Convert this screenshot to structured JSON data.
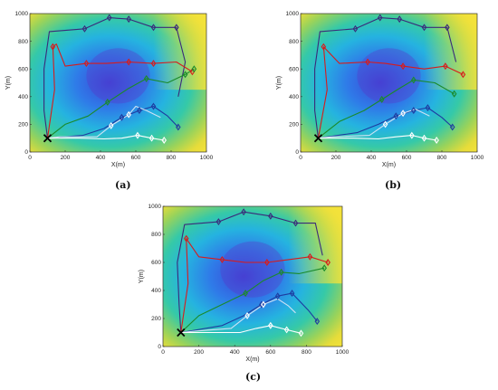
{
  "figure": {
    "captions": [
      "(a)",
      "(b)",
      "(c)"
    ]
  },
  "chart_data": [
    {
      "type": "line",
      "panel": "(a)",
      "xlabel": "X(m)",
      "ylabel": "Y(m)",
      "xlim": [
        0,
        1000
      ],
      "ylim": [
        0,
        1000
      ],
      "xticks": [
        0,
        200,
        400,
        600,
        800,
        1000
      ],
      "yticks": [
        0,
        200,
        400,
        600,
        800,
        1000
      ],
      "background": "terrain-heatmap",
      "depot": [
        100,
        100
      ],
      "series": [
        {
          "color": "#3a2a7a",
          "points": [
            [
              100,
              100
            ],
            [
              80,
              300
            ],
            [
              80,
              600
            ],
            [
              110,
              870
            ],
            [
              310,
              890
            ],
            [
              450,
              970
            ],
            [
              560,
              960
            ],
            [
              700,
              900
            ],
            [
              830,
              900
            ],
            [
              880,
              650
            ],
            [
              840,
              400
            ]
          ]
        },
        {
          "color": "#d81b1b",
          "points": [
            [
              100,
              100
            ],
            [
              140,
              450
            ],
            [
              130,
              760
            ],
            [
              150,
              780
            ],
            [
              200,
              620
            ],
            [
              320,
              640
            ],
            [
              430,
              640
            ],
            [
              560,
              650
            ],
            [
              700,
              640
            ],
            [
              830,
              650
            ],
            [
              920,
              580
            ]
          ]
        },
        {
          "color": "#1a8a2a",
          "points": [
            [
              100,
              100
            ],
            [
              200,
              200
            ],
            [
              330,
              260
            ],
            [
              440,
              360
            ],
            [
              560,
              460
            ],
            [
              660,
              530
            ],
            [
              780,
              500
            ],
            [
              880,
              560
            ],
            [
              930,
              600
            ]
          ]
        },
        {
          "color": "#1e3aa0",
          "points": [
            [
              100,
              100
            ],
            [
              300,
              120
            ],
            [
              420,
              170
            ],
            [
              520,
              250
            ],
            [
              620,
              300
            ],
            [
              700,
              330
            ],
            [
              780,
              260
            ],
            [
              840,
              180
            ]
          ]
        },
        {
          "color": "#cfe3f5",
          "points": [
            [
              100,
              100
            ],
            [
              170,
              110
            ],
            [
              380,
              110
            ],
            [
              460,
              190
            ],
            [
              560,
              270
            ],
            [
              600,
              330
            ],
            [
              660,
              300
            ],
            [
              740,
              250
            ]
          ]
        },
        {
          "color": "#ffffff",
          "points": [
            [
              100,
              100
            ],
            [
              280,
              100
            ],
            [
              420,
              95
            ],
            [
              520,
              100
            ],
            [
              610,
              120
            ],
            [
              690,
              100
            ],
            [
              760,
              85
            ]
          ]
        }
      ],
      "waypoints": [
        {
          "color": "#3a2a7a",
          "points": [
            [
              310,
              890
            ],
            [
              450,
              970
            ],
            [
              560,
              960
            ],
            [
              700,
              900
            ],
            [
              830,
              900
            ]
          ]
        },
        {
          "color": "#d81b1b",
          "points": [
            [
              130,
              760
            ],
            [
              320,
              640
            ],
            [
              560,
              650
            ],
            [
              700,
              640
            ],
            [
              920,
              580
            ]
          ]
        },
        {
          "color": "#1a8a2a",
          "points": [
            [
              440,
              360
            ],
            [
              660,
              530
            ],
            [
              880,
              560
            ],
            [
              930,
              600
            ]
          ]
        },
        {
          "color": "#1e3aa0",
          "points": [
            [
              520,
              250
            ],
            [
              620,
              300
            ],
            [
              700,
              330
            ],
            [
              840,
              180
            ]
          ]
        },
        {
          "color": "#ffffff",
          "points": [
            [
              460,
              190
            ],
            [
              560,
              270
            ],
            [
              610,
              120
            ],
            [
              690,
              100
            ],
            [
              760,
              85
            ]
          ]
        }
      ]
    },
    {
      "type": "line",
      "panel": "(b)",
      "xlabel": "X(m)",
      "ylabel": "Y(m)",
      "xlim": [
        0,
        1000
      ],
      "ylim": [
        0,
        1000
      ],
      "xticks": [
        0,
        200,
        400,
        600,
        800,
        1000
      ],
      "yticks": [
        0,
        200,
        400,
        600,
        800,
        1000
      ],
      "background": "terrain-heatmap",
      "depot": [
        100,
        100
      ],
      "series": [
        {
          "color": "#3a2a7a",
          "points": [
            [
              100,
              100
            ],
            [
              80,
              300
            ],
            [
              80,
              600
            ],
            [
              110,
              870
            ],
            [
              310,
              890
            ],
            [
              450,
              970
            ],
            [
              560,
              960
            ],
            [
              700,
              900
            ],
            [
              830,
              900
            ],
            [
              880,
              650
            ]
          ]
        },
        {
          "color": "#d81b1b",
          "points": [
            [
              100,
              100
            ],
            [
              150,
              450
            ],
            [
              130,
              760
            ],
            [
              220,
              640
            ],
            [
              380,
              650
            ],
            [
              480,
              640
            ],
            [
              580,
              620
            ],
            [
              700,
              600
            ],
            [
              820,
              620
            ],
            [
              920,
              560
            ]
          ]
        },
        {
          "color": "#1a8a2a",
          "points": [
            [
              100,
              100
            ],
            [
              220,
              220
            ],
            [
              360,
              300
            ],
            [
              460,
              380
            ],
            [
              560,
              460
            ],
            [
              640,
              520
            ],
            [
              760,
              500
            ],
            [
              870,
              420
            ]
          ]
        },
        {
          "color": "#1e3aa0",
          "points": [
            [
              100,
              100
            ],
            [
              320,
              140
            ],
            [
              440,
              200
            ],
            [
              540,
              260
            ],
            [
              640,
              300
            ],
            [
              720,
              320
            ],
            [
              800,
              250
            ],
            [
              860,
              180
            ]
          ]
        },
        {
          "color": "#cfe3f5",
          "points": [
            [
              100,
              100
            ],
            [
              180,
              110
            ],
            [
              390,
              120
            ],
            [
              480,
              200
            ],
            [
              580,
              280
            ],
            [
              650,
              310
            ],
            [
              730,
              260
            ]
          ]
        },
        {
          "color": "#ffffff",
          "points": [
            [
              100,
              100
            ],
            [
              300,
              100
            ],
            [
              440,
              95
            ],
            [
              540,
              110
            ],
            [
              630,
              120
            ],
            [
              700,
              100
            ],
            [
              770,
              85
            ]
          ]
        }
      ],
      "waypoints": [
        {
          "color": "#3a2a7a",
          "points": [
            [
              310,
              890
            ],
            [
              450,
              970
            ],
            [
              560,
              960
            ],
            [
              700,
              900
            ],
            [
              830,
              900
            ]
          ]
        },
        {
          "color": "#d81b1b",
          "points": [
            [
              130,
              760
            ],
            [
              380,
              650
            ],
            [
              580,
              620
            ],
            [
              820,
              620
            ],
            [
              920,
              560
            ]
          ]
        },
        {
          "color": "#1a8a2a",
          "points": [
            [
              460,
              380
            ],
            [
              640,
              520
            ],
            [
              870,
              420
            ]
          ]
        },
        {
          "color": "#1e3aa0",
          "points": [
            [
              540,
              260
            ],
            [
              640,
              300
            ],
            [
              720,
              320
            ],
            [
              860,
              180
            ]
          ]
        },
        {
          "color": "#ffffff",
          "points": [
            [
              480,
              200
            ],
            [
              580,
              280
            ],
            [
              630,
              120
            ],
            [
              700,
              100
            ],
            [
              770,
              85
            ]
          ]
        }
      ]
    },
    {
      "type": "line",
      "panel": "(c)",
      "xlabel": "X(m)",
      "ylabel": "Y(m)",
      "xlim": [
        0,
        1000
      ],
      "ylim": [
        0,
        1000
      ],
      "xticks": [
        0,
        200,
        400,
        600,
        800,
        1000
      ],
      "yticks": [
        0,
        200,
        400,
        600,
        800,
        1000
      ],
      "background": "terrain-heatmap",
      "depot": [
        100,
        100
      ],
      "series": [
        {
          "color": "#3a2a7a",
          "points": [
            [
              100,
              100
            ],
            [
              90,
              300
            ],
            [
              80,
              600
            ],
            [
              120,
              870
            ],
            [
              310,
              890
            ],
            [
              450,
              960
            ],
            [
              600,
              930
            ],
            [
              740,
              880
            ],
            [
              850,
              880
            ],
            [
              890,
              650
            ]
          ]
        },
        {
          "color": "#d81b1b",
          "points": [
            [
              100,
              100
            ],
            [
              140,
              450
            ],
            [
              130,
              770
            ],
            [
              200,
              640
            ],
            [
              330,
              620
            ],
            [
              460,
              600
            ],
            [
              580,
              600
            ],
            [
              700,
              620
            ],
            [
              820,
              640
            ],
            [
              920,
              600
            ]
          ]
        },
        {
          "color": "#1a8a2a",
          "points": [
            [
              100,
              100
            ],
            [
              200,
              220
            ],
            [
              330,
              300
            ],
            [
              460,
              380
            ],
            [
              560,
              470
            ],
            [
              660,
              530
            ],
            [
              760,
              520
            ],
            [
              900,
              560
            ]
          ]
        },
        {
          "color": "#1e3aa0",
          "points": [
            [
              100,
              100
            ],
            [
              330,
              150
            ],
            [
              450,
              220
            ],
            [
              550,
              300
            ],
            [
              640,
              360
            ],
            [
              720,
              380
            ],
            [
              810,
              260
            ],
            [
              860,
              180
            ]
          ]
        },
        {
          "color": "#cfe3f5",
          "points": [
            [
              100,
              100
            ],
            [
              180,
              110
            ],
            [
              380,
              130
            ],
            [
              470,
              220
            ],
            [
              560,
              300
            ],
            [
              640,
              340
            ],
            [
              700,
              290
            ],
            [
              740,
              240
            ]
          ]
        },
        {
          "color": "#ffffff",
          "points": [
            [
              100,
              100
            ],
            [
              300,
              100
            ],
            [
              430,
              100
            ],
            [
              520,
              130
            ],
            [
              600,
              150
            ],
            [
              690,
              120
            ],
            [
              770,
              95
            ]
          ]
        }
      ],
      "waypoints": [
        {
          "color": "#3a2a7a",
          "points": [
            [
              310,
              890
            ],
            [
              450,
              960
            ],
            [
              600,
              930
            ],
            [
              740,
              880
            ]
          ]
        },
        {
          "color": "#d81b1b",
          "points": [
            [
              130,
              770
            ],
            [
              330,
              620
            ],
            [
              580,
              600
            ],
            [
              820,
              640
            ],
            [
              920,
              600
            ]
          ]
        },
        {
          "color": "#1a8a2a",
          "points": [
            [
              460,
              380
            ],
            [
              660,
              530
            ],
            [
              900,
              560
            ]
          ]
        },
        {
          "color": "#1e3aa0",
          "points": [
            [
              550,
              300
            ],
            [
              640,
              360
            ],
            [
              720,
              380
            ],
            [
              860,
              180
            ]
          ]
        },
        {
          "color": "#ffffff",
          "points": [
            [
              470,
              220
            ],
            [
              560,
              300
            ],
            [
              600,
              150
            ],
            [
              690,
              120
            ],
            [
              770,
              95
            ]
          ]
        }
      ]
    }
  ]
}
